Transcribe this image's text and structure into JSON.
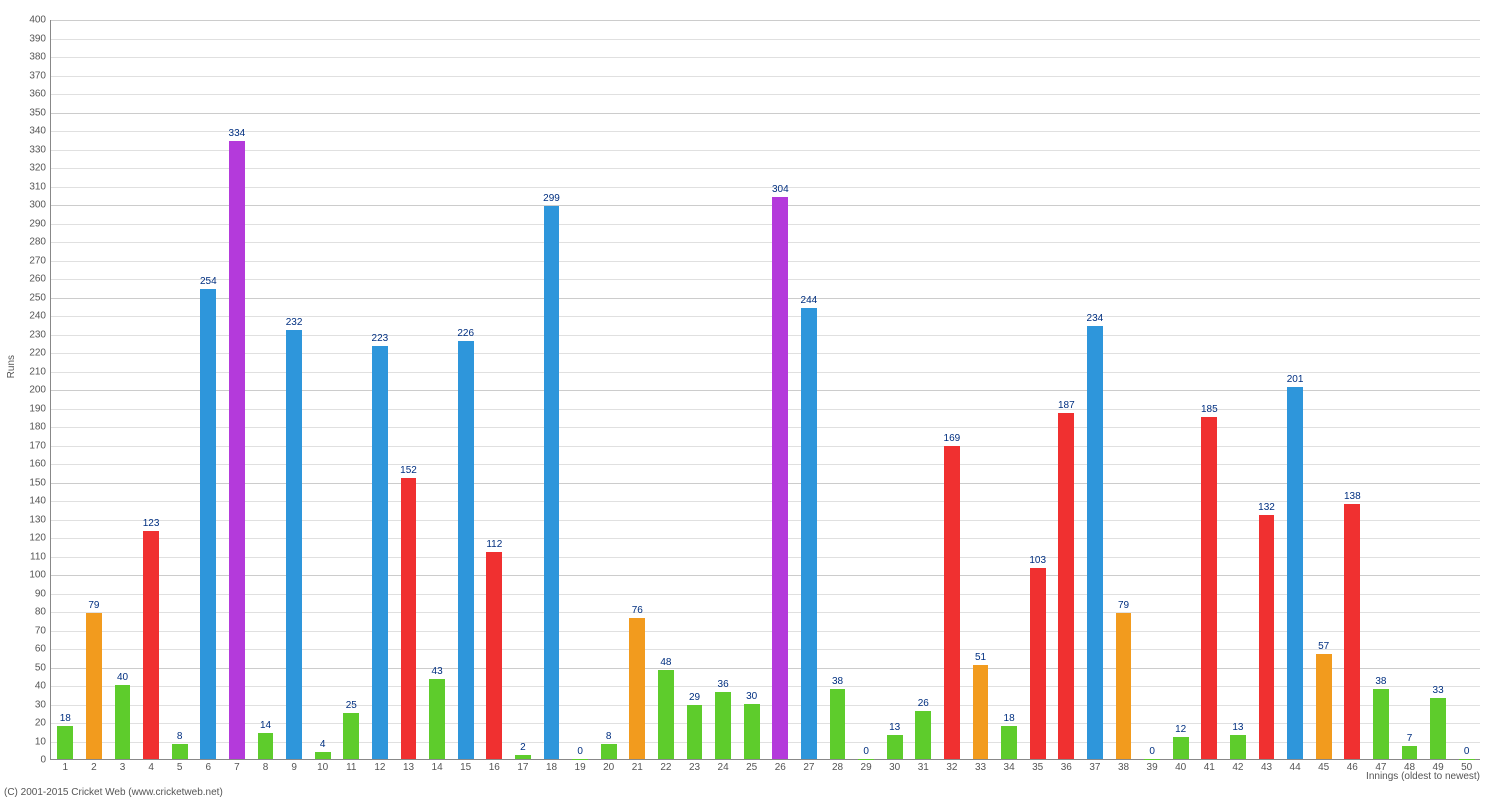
{
  "chart": {
    "type": "bar",
    "ylabel": "Runs",
    "xlabel": "Innings (oldest to newest)",
    "copyright": "(C) 2001-2015 Cricket Web (www.cricketweb.net)",
    "ylim": [
      0,
      400
    ],
    "ytick_step": 10,
    "background_color": "#ffffff",
    "grid_line_color": "#e0e0e0",
    "grid_major_color": "#cccccc",
    "axis_font_size": 10,
    "label_color": "#002f80",
    "bar_width_ratio": 0.55,
    "color_map": {
      "green": "#5ecc2c",
      "orange": "#f29b1e",
      "red": "#f03030",
      "blue": "#2e96db",
      "purple": "#b43adb"
    },
    "data": [
      {
        "x": 1,
        "value": 18,
        "color": "green"
      },
      {
        "x": 2,
        "value": 79,
        "color": "orange"
      },
      {
        "x": 3,
        "value": 40,
        "color": "green"
      },
      {
        "x": 4,
        "value": 123,
        "color": "red"
      },
      {
        "x": 5,
        "value": 8,
        "color": "green"
      },
      {
        "x": 6,
        "value": 254,
        "color": "blue"
      },
      {
        "x": 7,
        "value": 334,
        "color": "purple"
      },
      {
        "x": 8,
        "value": 14,
        "color": "green"
      },
      {
        "x": 9,
        "value": 232,
        "color": "blue"
      },
      {
        "x": 10,
        "value": 4,
        "color": "green"
      },
      {
        "x": 11,
        "value": 25,
        "color": "green"
      },
      {
        "x": 12,
        "value": 223,
        "color": "blue"
      },
      {
        "x": 13,
        "value": 152,
        "color": "red"
      },
      {
        "x": 14,
        "value": 43,
        "color": "green"
      },
      {
        "x": 15,
        "value": 226,
        "color": "blue"
      },
      {
        "x": 16,
        "value": 112,
        "color": "red"
      },
      {
        "x": 17,
        "value": 2,
        "color": "green"
      },
      {
        "x": 18,
        "value": 299,
        "color": "blue"
      },
      {
        "x": 19,
        "value": 0,
        "color": "green"
      },
      {
        "x": 20,
        "value": 8,
        "color": "green"
      },
      {
        "x": 21,
        "value": 76,
        "color": "orange"
      },
      {
        "x": 22,
        "value": 48,
        "color": "green"
      },
      {
        "x": 23,
        "value": 29,
        "color": "green"
      },
      {
        "x": 24,
        "value": 36,
        "color": "green"
      },
      {
        "x": 25,
        "value": 30,
        "color": "green"
      },
      {
        "x": 26,
        "value": 304,
        "color": "purple"
      },
      {
        "x": 27,
        "value": 244,
        "color": "blue"
      },
      {
        "x": 28,
        "value": 38,
        "color": "green"
      },
      {
        "x": 29,
        "value": 0,
        "color": "green"
      },
      {
        "x": 30,
        "value": 13,
        "color": "green"
      },
      {
        "x": 31,
        "value": 26,
        "color": "green"
      },
      {
        "x": 32,
        "value": 169,
        "color": "red"
      },
      {
        "x": 33,
        "value": 51,
        "color": "orange"
      },
      {
        "x": 34,
        "value": 18,
        "color": "green"
      },
      {
        "x": 35,
        "value": 103,
        "color": "red"
      },
      {
        "x": 36,
        "value": 187,
        "color": "red"
      },
      {
        "x": 37,
        "value": 234,
        "color": "blue"
      },
      {
        "x": 38,
        "value": 79,
        "color": "orange"
      },
      {
        "x": 39,
        "value": 0,
        "color": "green"
      },
      {
        "x": 40,
        "value": 12,
        "color": "green"
      },
      {
        "x": 41,
        "value": 185,
        "color": "red"
      },
      {
        "x": 42,
        "value": 13,
        "color": "green"
      },
      {
        "x": 43,
        "value": 132,
        "color": "red"
      },
      {
        "x": 44,
        "value": 201,
        "color": "blue"
      },
      {
        "x": 45,
        "value": 57,
        "color": "orange"
      },
      {
        "x": 46,
        "value": 138,
        "color": "red"
      },
      {
        "x": 47,
        "value": 38,
        "color": "green"
      },
      {
        "x": 48,
        "value": 7,
        "color": "green"
      },
      {
        "x": 49,
        "value": 33,
        "color": "green"
      },
      {
        "x": 50,
        "value": 0,
        "color": "green"
      }
    ]
  }
}
